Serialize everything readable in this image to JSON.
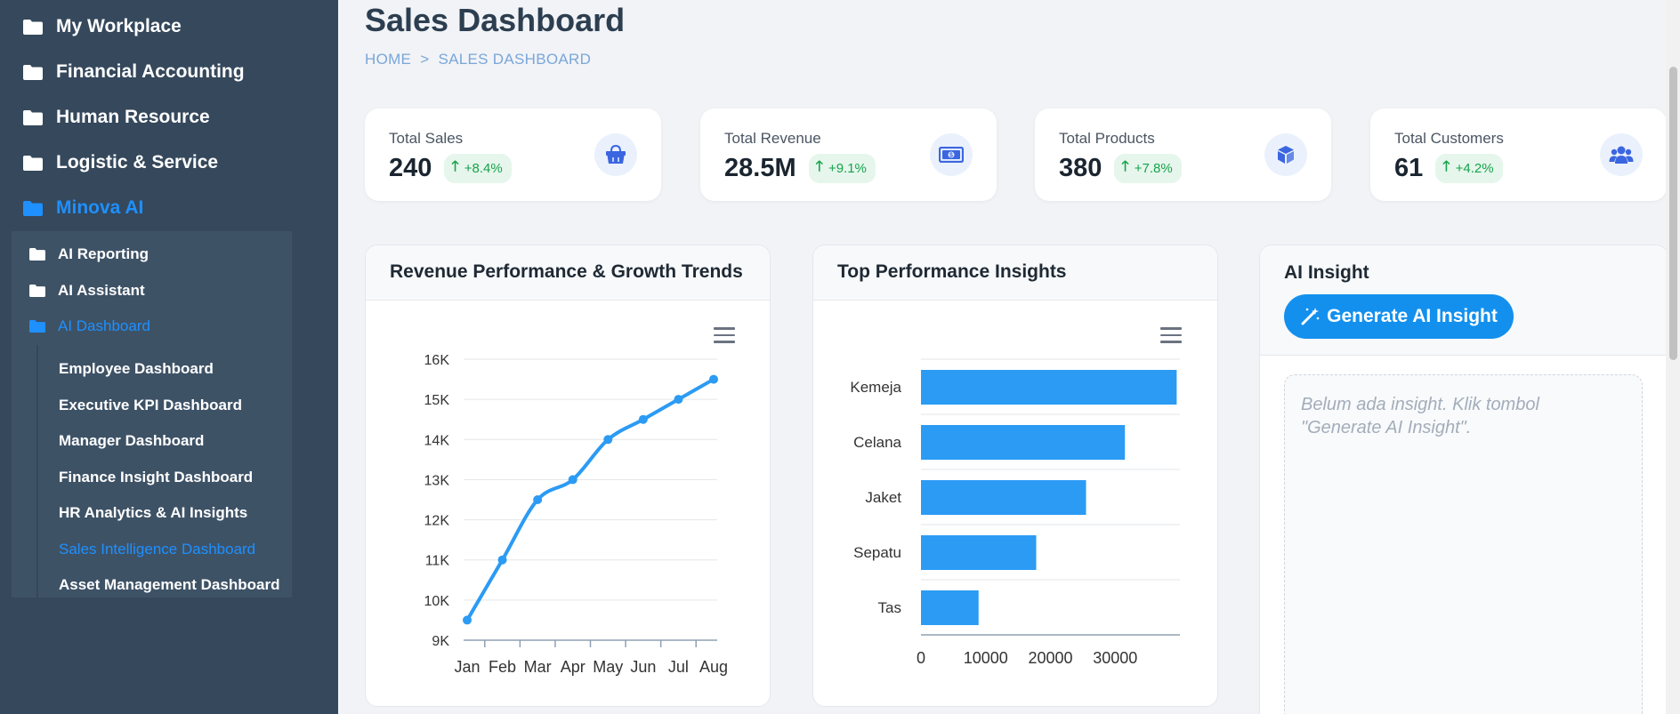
{
  "sidebar": {
    "items": [
      {
        "label": "My Workplace"
      },
      {
        "label": "Financial Accounting"
      },
      {
        "label": "Human Resource"
      },
      {
        "label": "Logistic & Service"
      },
      {
        "label": "Minova AI"
      }
    ],
    "sub_items": [
      {
        "label": "AI Reporting"
      },
      {
        "label": "AI Assistant"
      },
      {
        "label": "AI Dashboard"
      }
    ],
    "dashboards": [
      {
        "label": "Employee Dashboard"
      },
      {
        "label": "Executive KPI Dashboard"
      },
      {
        "label": "Manager Dashboard"
      },
      {
        "label": "Finance Insight Dashboard"
      },
      {
        "label": "HR Analytics & AI Insights"
      },
      {
        "label": "Sales Intelligence Dashboard"
      },
      {
        "label": "Asset Management Dashboard"
      }
    ]
  },
  "header": {
    "title": "Sales Dashboard",
    "breadcrumb_home": "HOME",
    "breadcrumb_sep": ">",
    "breadcrumb_current": "SALES DASHBOARD"
  },
  "stats": [
    {
      "label": "Total Sales",
      "value": "240",
      "change": "+8.4%",
      "icon": "shopping-bag-icon"
    },
    {
      "label": "Total Revenue",
      "value": "28.5M",
      "change": "+9.1%",
      "icon": "money-bill-icon"
    },
    {
      "label": "Total Products",
      "value": "380",
      "change": "+7.8%",
      "icon": "box-icon"
    },
    {
      "label": "Total Customers",
      "value": "61",
      "change": "+4.2%",
      "icon": "users-icon"
    }
  ],
  "panels": {
    "revenue_title": "Revenue Performance & Growth Trends",
    "insights_title": "Top Performance Insights",
    "ai_title": "AI Insight",
    "ai_button": "Generate AI Insight",
    "ai_placeholder": "Belum ada insight. Klik tombol \"Generate AI Insight\"."
  },
  "chart_data": [
    {
      "type": "line",
      "categories": [
        "Jan",
        "Feb",
        "Mar",
        "Apr",
        "May",
        "Jun",
        "Jul",
        "Aug"
      ],
      "values": [
        9500,
        11000,
        12500,
        13000,
        14000,
        14500,
        15000,
        15500
      ],
      "ylim": [
        9000,
        16000
      ],
      "yticks": [
        "9K",
        "10K",
        "11K",
        "12K",
        "13K",
        "14K",
        "15K",
        "16K"
      ],
      "color": "#2b9bf4",
      "grid": true
    },
    {
      "type": "bar",
      "orientation": "horizontal",
      "categories": [
        "Kemeja",
        "Celana",
        "Jaket",
        "Sepatu",
        "Tas"
      ],
      "values": [
        39500,
        31500,
        25500,
        17800,
        8900
      ],
      "xlim": [
        0,
        40000
      ],
      "xticks": [
        "0",
        "10000",
        "20000",
        "30000"
      ],
      "color": "#2b9bf4",
      "grid": true
    }
  ],
  "colors": {
    "accent": "#1e90ff",
    "sidebar": "#35485c",
    "positive": "#16a34a"
  }
}
